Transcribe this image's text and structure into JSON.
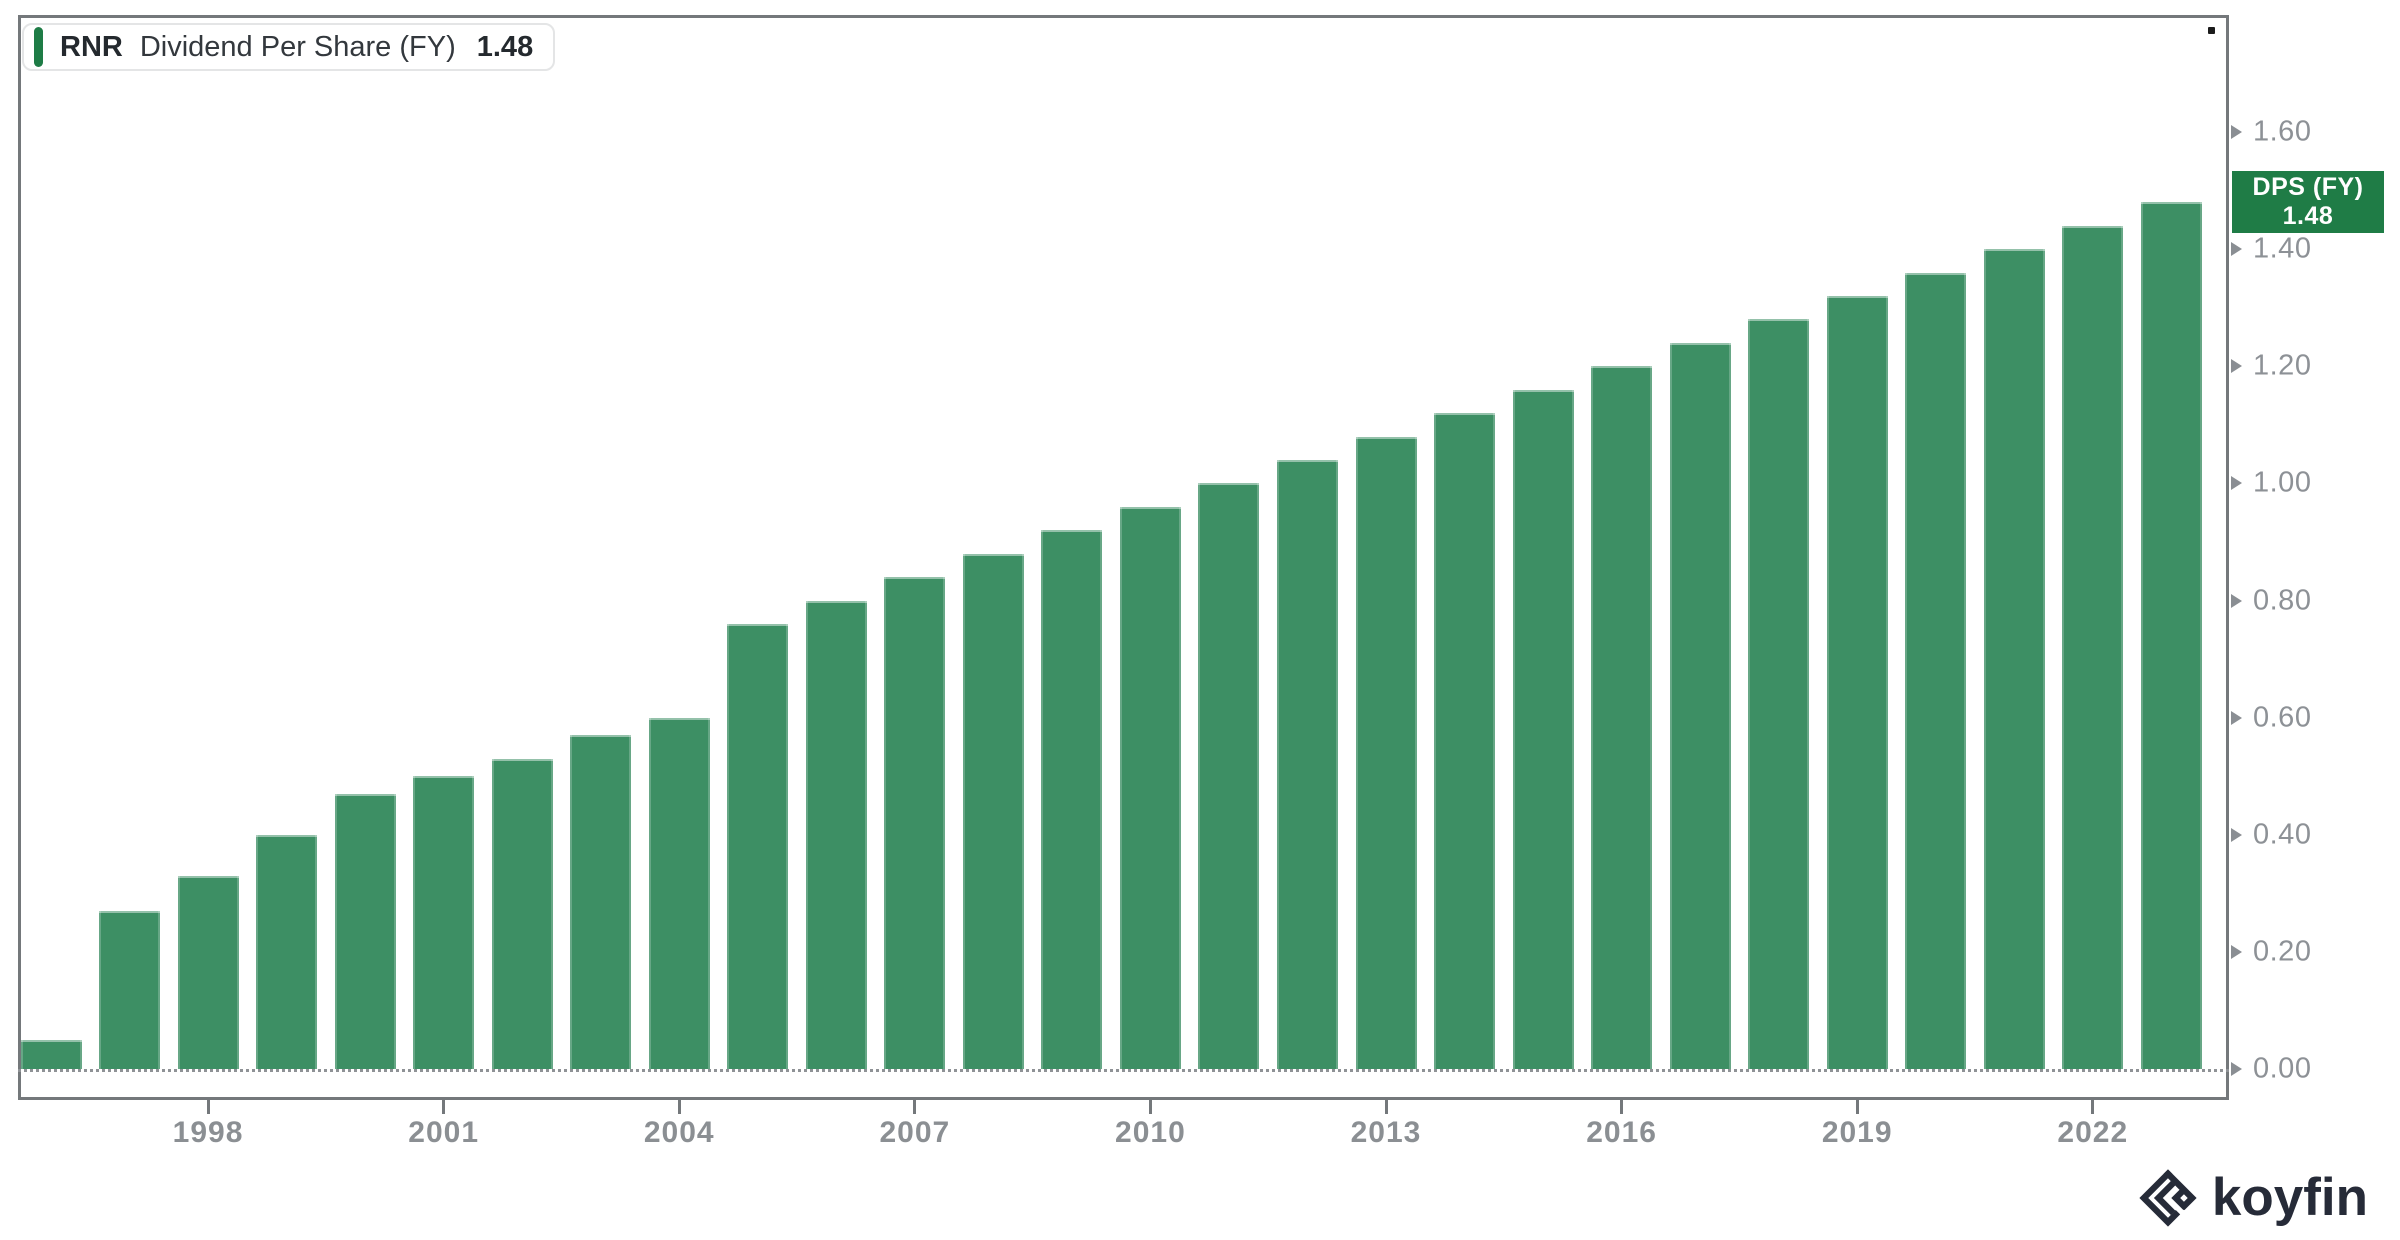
{
  "legend": {
    "ticker": "RNR",
    "metric": "Dividend Per Share (FY)",
    "value": "1.48"
  },
  "badge": {
    "line1": "DPS (FY)",
    "line2": "1.48"
  },
  "watermark_text": "koyfin",
  "icons": {
    "watermark": "koyfin-diamond-chevrons-icon",
    "y_tick": "right-arrow-tick-icon"
  },
  "colors": {
    "bar": "#3d8f64",
    "badge": "#1f7c46",
    "legend_accent": "#1e7c46",
    "axis_frame": "#74787b",
    "axis_label": "#8d9196",
    "logo_text": "#262b38"
  },
  "chart_data": {
    "type": "bar",
    "title": "RNR Dividend Per Share (FY)",
    "xlabel": "",
    "ylabel": "",
    "x": [
      1996,
      1997,
      1998,
      1999,
      2000,
      2001,
      2002,
      2003,
      2004,
      2005,
      2006,
      2007,
      2008,
      2009,
      2010,
      2011,
      2012,
      2013,
      2014,
      2015,
      2016,
      2017,
      2018,
      2019,
      2020,
      2021,
      2022,
      2023
    ],
    "values": [
      0.05,
      0.27,
      0.33,
      0.4,
      0.47,
      0.5,
      0.53,
      0.57,
      0.6,
      0.76,
      0.8,
      0.84,
      0.88,
      0.92,
      0.96,
      1.0,
      1.04,
      1.08,
      1.12,
      1.16,
      1.2,
      1.24,
      1.28,
      1.32,
      1.36,
      1.4,
      1.44,
      1.48
    ],
    "x_tick_labels": [
      "1998",
      "2001",
      "2004",
      "2007",
      "2010",
      "2013",
      "2016",
      "2019",
      "2022"
    ],
    "y_tick_labels": [
      "0.00",
      "0.20",
      "0.40",
      "0.60",
      "0.80",
      "1.00",
      "1.20",
      "1.40",
      "1.60"
    ],
    "ylim": [
      0.0,
      1.72
    ],
    "grid": "dotted-zero-line-only",
    "legend_position": "top-left",
    "series_name": "DPS (FY)",
    "last_value": 1.48
  }
}
